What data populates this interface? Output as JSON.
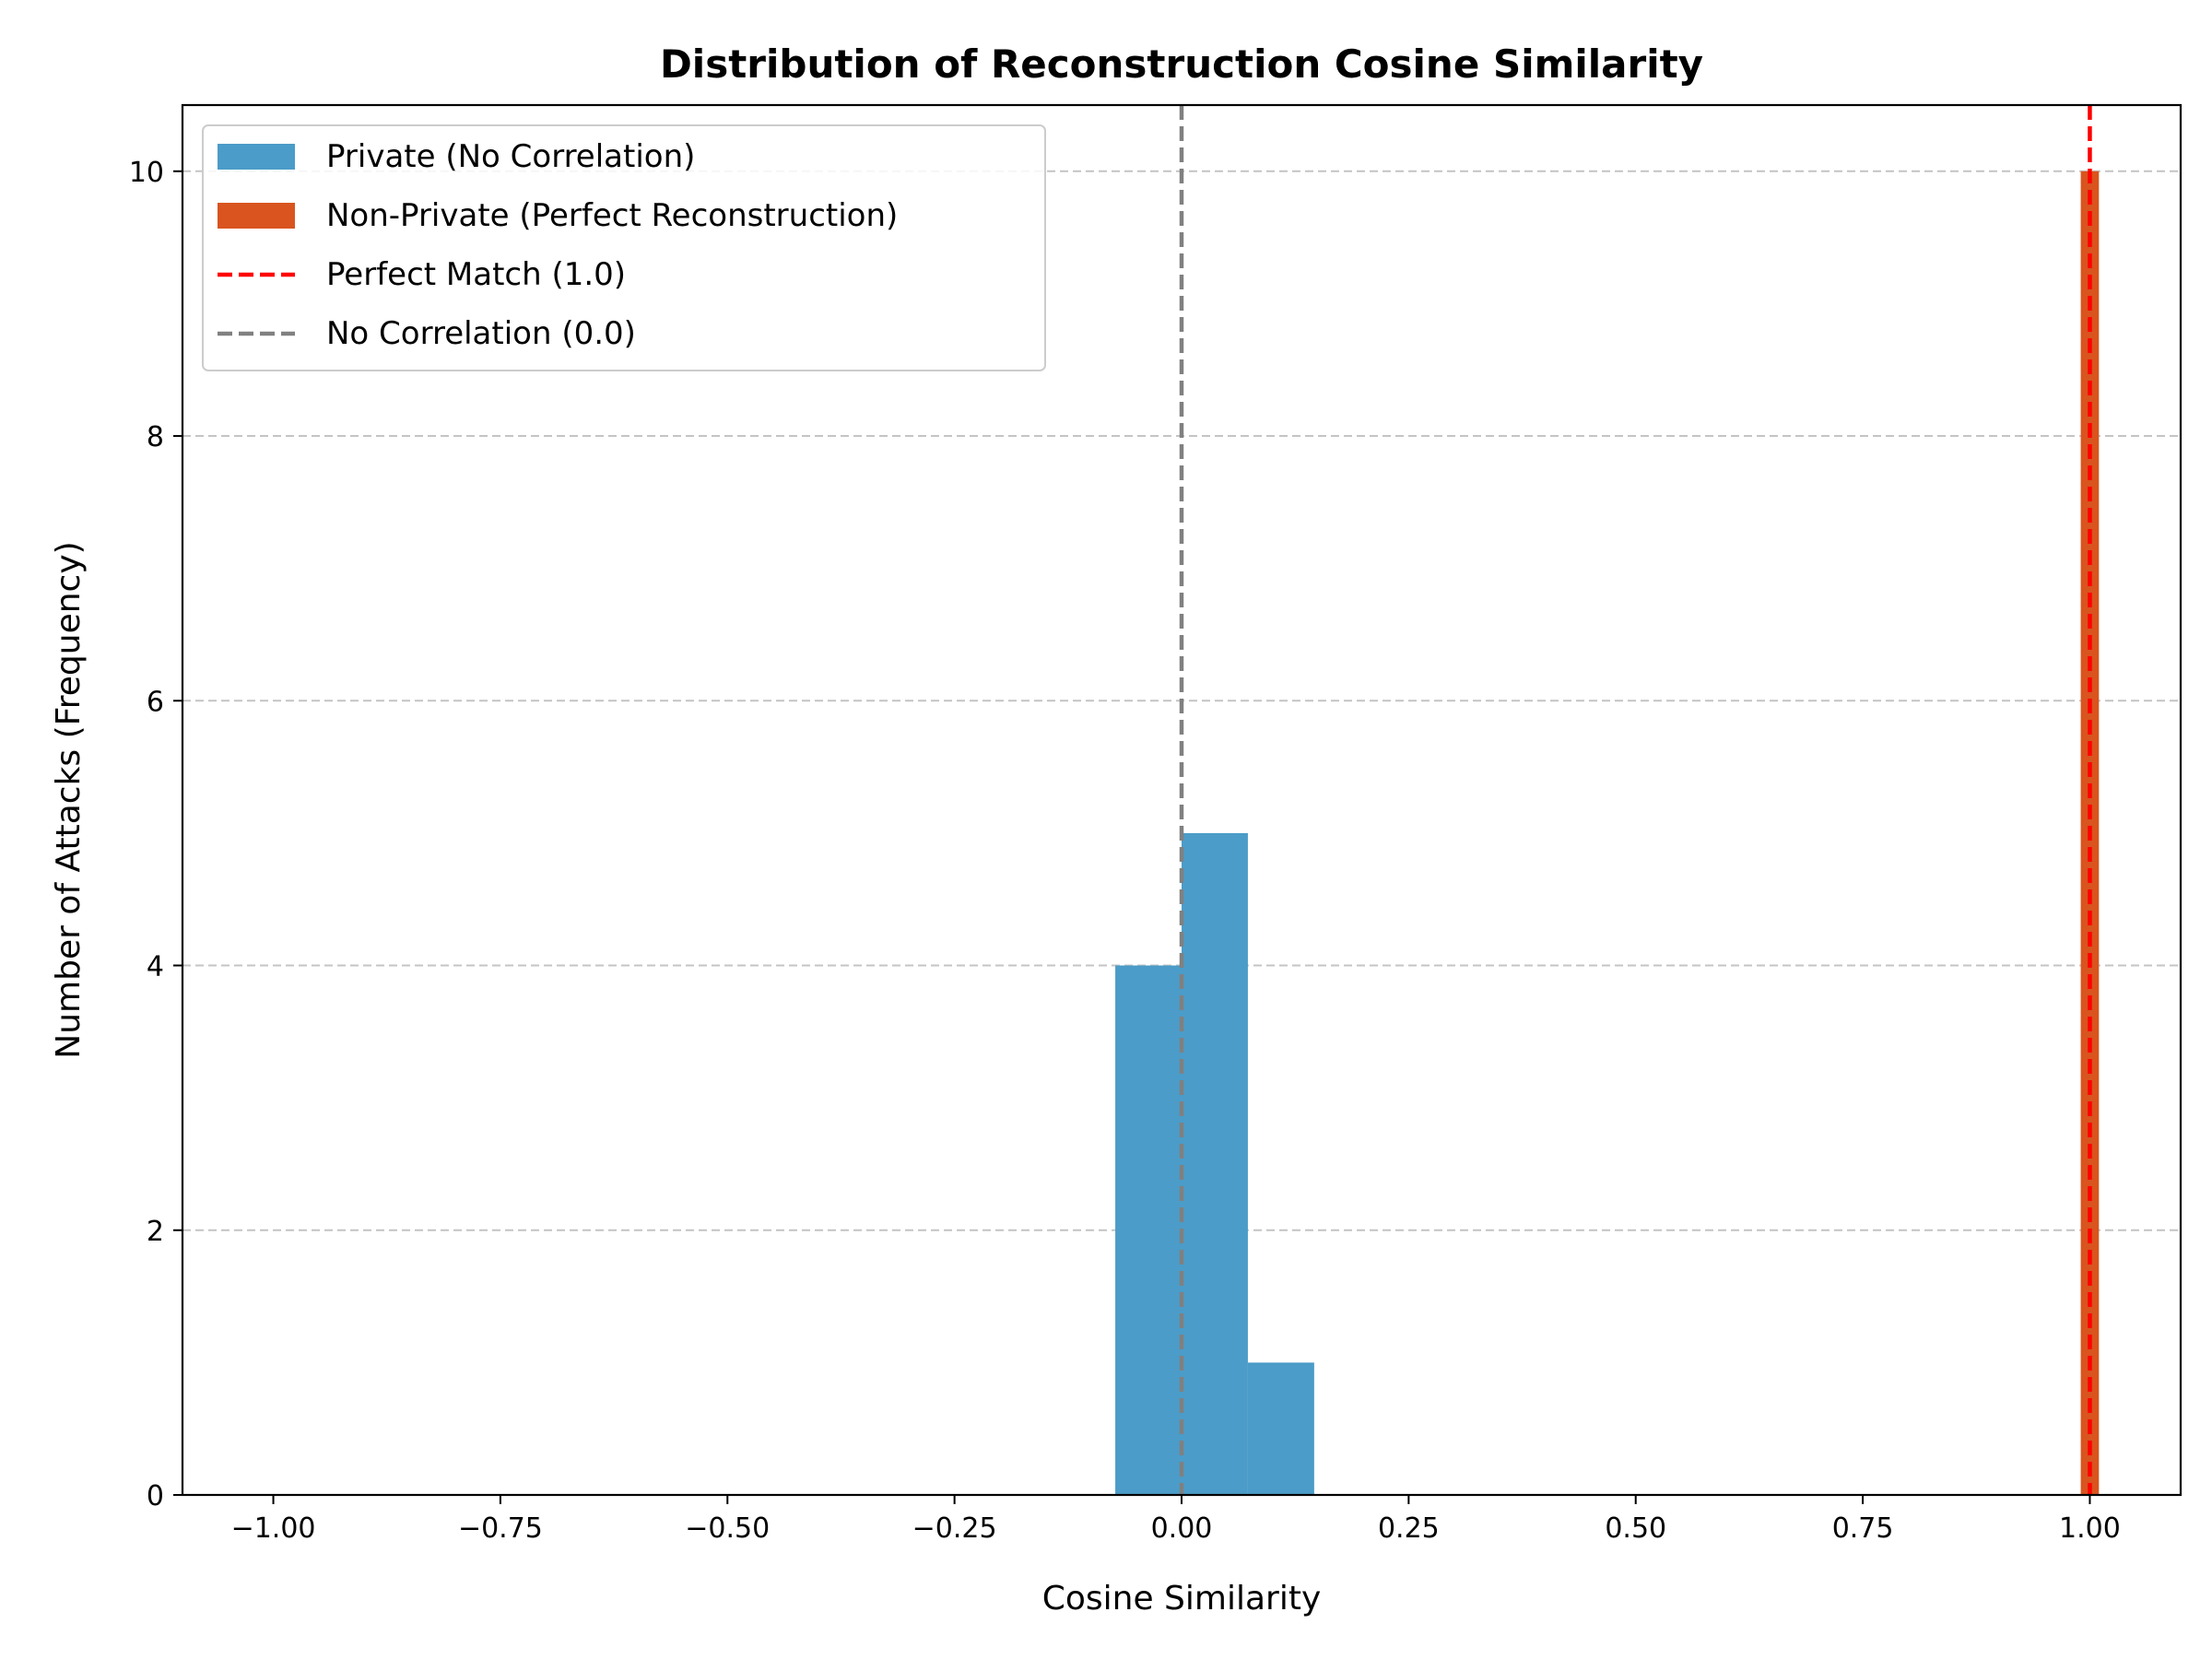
{
  "chart_data": {
    "type": "bar",
    "title": "Distribution of Reconstruction Cosine Similarity",
    "xlabel": "Cosine Similarity",
    "ylabel": "Number of Attacks (Frequency)",
    "xlim": [
      -1.1,
      1.1
    ],
    "ylim": [
      0,
      10.5
    ],
    "xticks": [
      -1.0,
      -0.75,
      -0.5,
      -0.25,
      0.0,
      0.25,
      0.5,
      0.75,
      1.0
    ],
    "xtick_labels": [
      "−1.00",
      "−0.75",
      "−0.50",
      "−0.25",
      "0.00",
      "0.25",
      "0.50",
      "0.75",
      "1.00"
    ],
    "yticks": [
      0,
      2,
      4,
      6,
      8,
      10
    ],
    "ytick_labels": [
      "0",
      "2",
      "4",
      "6",
      "8",
      "10"
    ],
    "grid": "y-dashed",
    "legend_position": "upper left",
    "series": [
      {
        "name": "Private (No Correlation)",
        "kind": "histogram",
        "color": "#4b9cc8",
        "bins": [
          {
            "x0": -0.073,
            "x1": 0.0,
            "count": 4
          },
          {
            "x0": 0.0,
            "x1": 0.073,
            "count": 5
          },
          {
            "x0": 0.073,
            "x1": 0.146,
            "count": 1
          }
        ]
      },
      {
        "name": "Non-Private (Perfect Reconstruction)",
        "kind": "histogram",
        "color": "#d9541e",
        "bins": [
          {
            "x0": 0.99,
            "x1": 1.01,
            "count": 10
          }
        ]
      }
    ],
    "reference_lines": [
      {
        "name": "Perfect Match (1.0)",
        "x": 1.0,
        "color": "#ff0000",
        "style": "dashed"
      },
      {
        "name": "No Correlation (0.0)",
        "x": 0.0,
        "color": "#808080",
        "style": "dashed"
      }
    ]
  }
}
